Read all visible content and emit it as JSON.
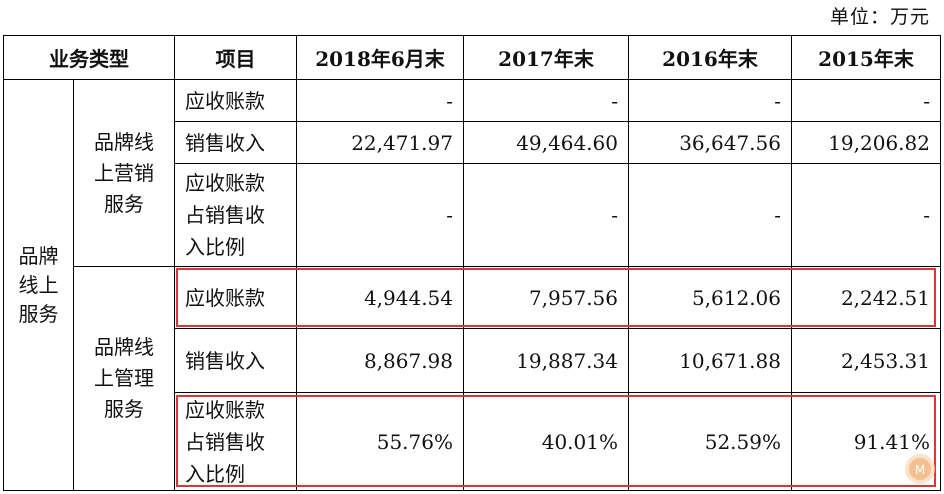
{
  "unit_label": "单位：万元",
  "headers": [
    "业务类型",
    "项目",
    "2018年6月末",
    "2017年末",
    "2016年末",
    "2015年末"
  ],
  "category": "品牌线上服务",
  "groups": [
    {
      "name": "品牌线上营销服务",
      "rows": [
        {
          "item": "应收账款",
          "values": [
            "-",
            "-",
            "-",
            "-"
          ]
        },
        {
          "item": "销售收入",
          "values": [
            "22,471.97",
            "49,464.60",
            "36,647.56",
            "19,206.82"
          ]
        },
        {
          "item": "应收账款占销售收入比例",
          "values": [
            "-",
            "-",
            "-",
            "-"
          ]
        }
      ]
    },
    {
      "name": "品牌线上管理服务",
      "rows": [
        {
          "item": "应收账款",
          "values": [
            "4,944.54",
            "7,957.56",
            "5,612.06",
            "2,242.51"
          ]
        },
        {
          "item": "销售收入",
          "values": [
            "8,867.98",
            "19,887.34",
            "10,671.88",
            "2,453.31"
          ]
        },
        {
          "item": "应收账款占销售收入比例",
          "values": [
            "55.76%",
            "40.01%",
            "52.59%",
            "91.41%"
          ]
        }
      ]
    }
  ],
  "highlight_color": "#d9373a"
}
